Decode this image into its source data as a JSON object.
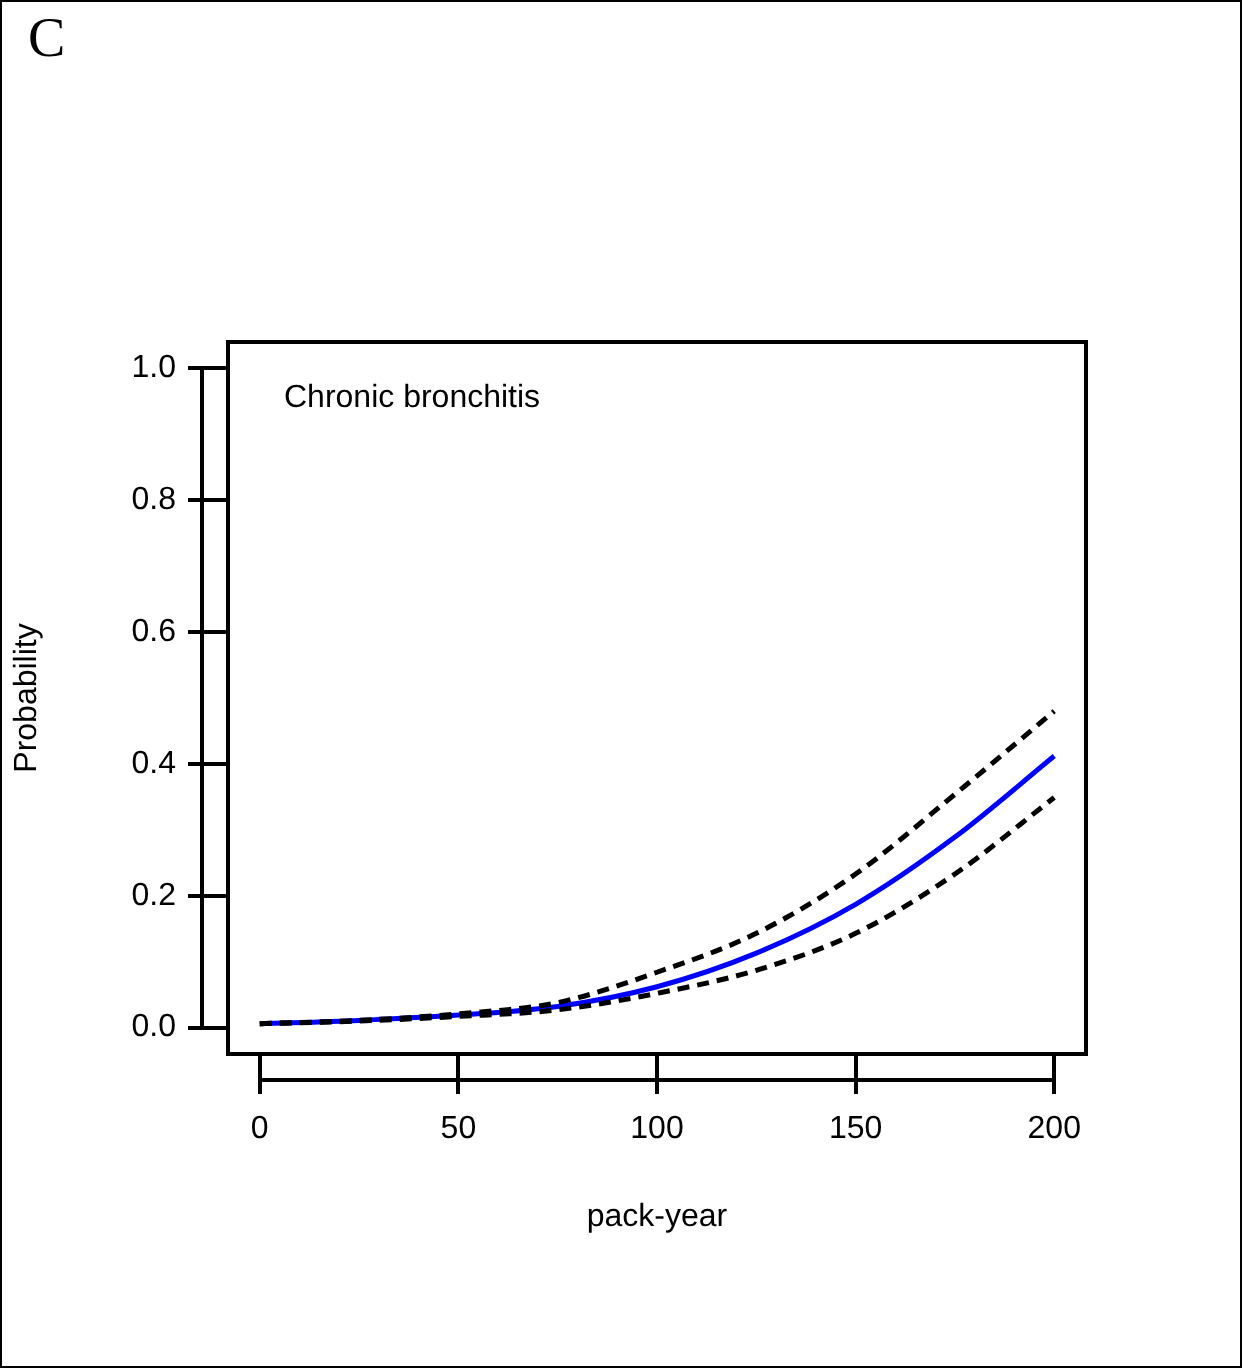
{
  "chart_data": {
    "type": "line",
    "title": "C",
    "xlabel": "pack-year",
    "ylabel": "Probability",
    "annotations": [
      "Chronic bronchitis"
    ],
    "x": [
      0,
      25,
      50,
      75,
      100,
      125,
      150,
      175,
      200
    ],
    "series": [
      {
        "color": "#0000ff",
        "line_style": "solid",
        "values": [
          0.006,
          0.011,
          0.019,
          0.032,
          0.062,
          0.113,
          0.187,
          0.289,
          0.412
        ]
      },
      {
        "color": "#000000",
        "line_style": "dashed",
        "values": [
          0.006,
          0.011,
          0.021,
          0.038,
          0.084,
          0.143,
          0.233,
          0.354,
          0.48
        ]
      },
      {
        "color": "#000000",
        "line_style": "dashed",
        "values": [
          0.006,
          0.01,
          0.017,
          0.027,
          0.052,
          0.087,
          0.143,
          0.233,
          0.349
        ]
      }
    ],
    "xlim": [
      -8,
      208
    ],
    "xticks": [
      0,
      50,
      100,
      150,
      200
    ],
    "ylim": [
      -0.04,
      1.04
    ],
    "yticks": [
      {
        "value": 0,
        "label": "0.0"
      },
      {
        "value": 0.2,
        "label": "0.2"
      },
      {
        "value": 0.4,
        "label": "0.4"
      },
      {
        "value": 0.6,
        "label": "0.6"
      },
      {
        "value": 0.8,
        "label": "0.8"
      },
      {
        "value": 1,
        "label": "1.0"
      }
    ],
    "grid": false,
    "legend": false,
    "marker": "none"
  }
}
